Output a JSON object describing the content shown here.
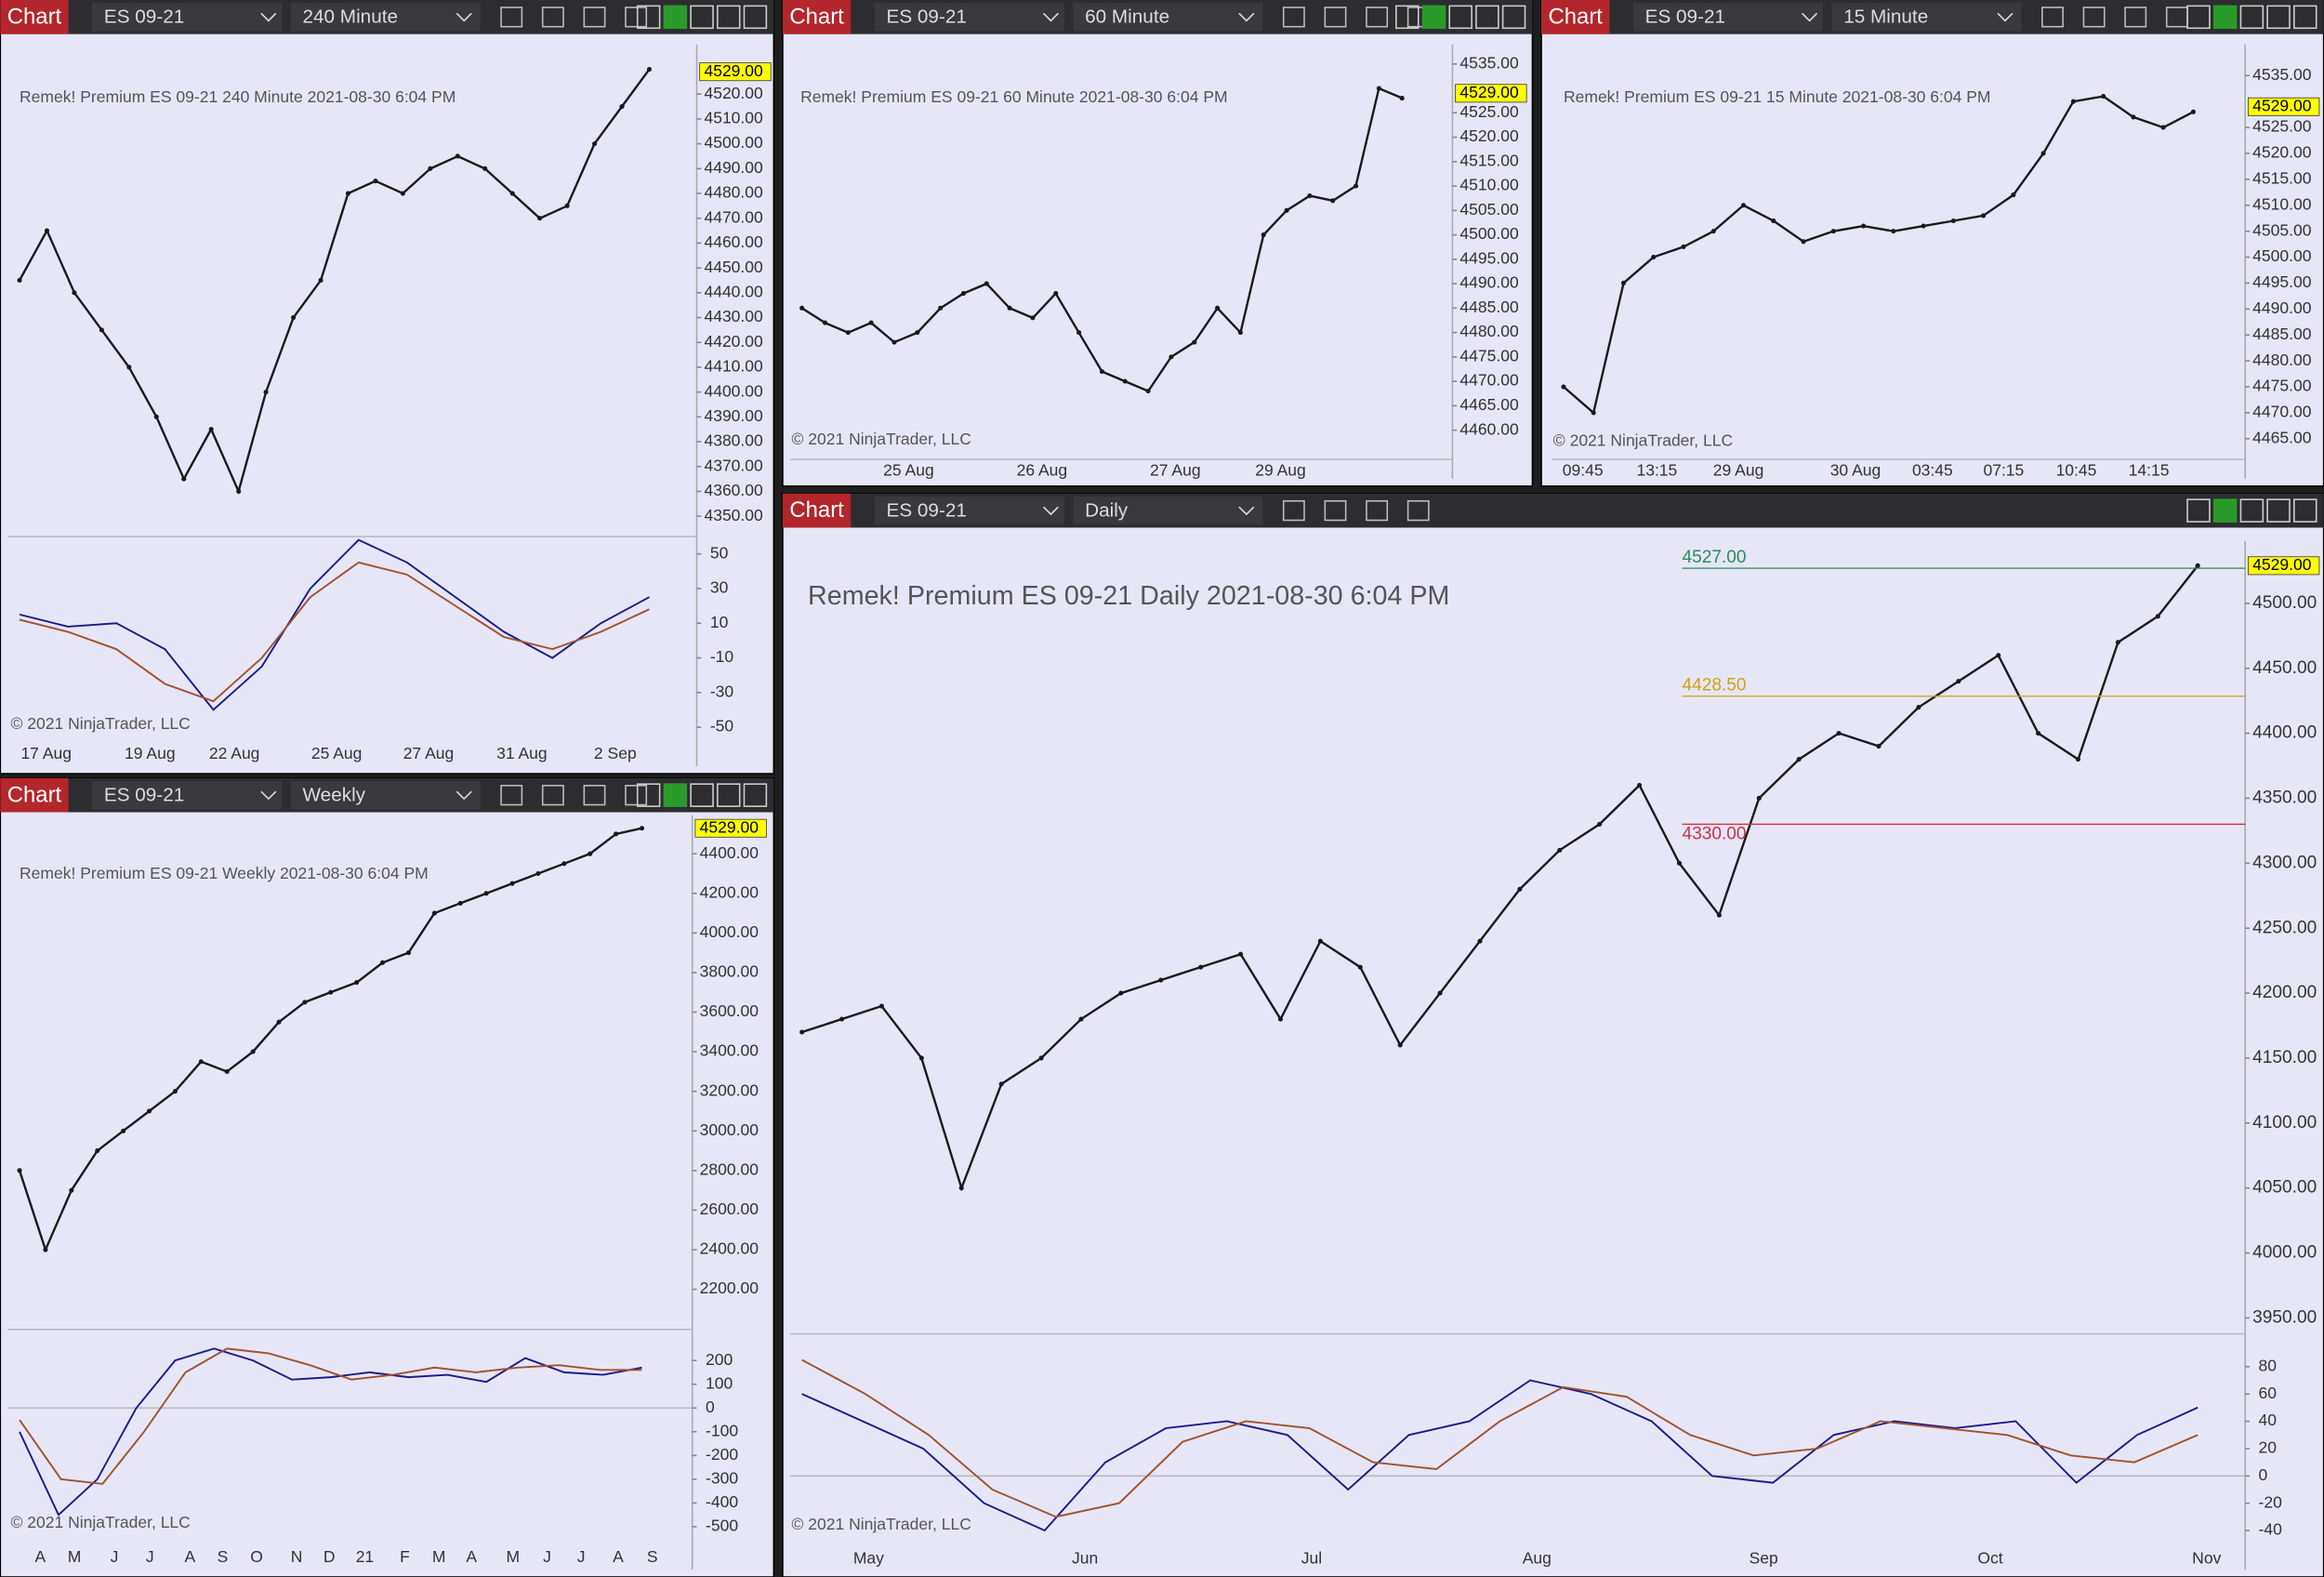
{
  "panels": [
    {
      "toolbar": {
        "button": "Chart",
        "symbol": "ES 09-21",
        "interval": "240 Minute"
      },
      "title": "Remek!  Premium  ES 09-21  240 Minute  2021-08-30 6:04 PM",
      "copyright": "© 2021 NinjaTrader, LLC",
      "price_label": {
        "value": 4529,
        "label": "4529.00"
      },
      "ylim": [
        4343,
        4540
      ],
      "yticks": [
        {
          "value": 4350,
          "label": "4350.00"
        },
        {
          "value": 4360,
          "label": "4360.00"
        },
        {
          "value": 4370,
          "label": "4370.00"
        },
        {
          "value": 4380,
          "label": "4380.00"
        },
        {
          "value": 4390,
          "label": "4390.00"
        },
        {
          "value": 4400,
          "label": "4400.00"
        },
        {
          "value": 4410,
          "label": "4410.00"
        },
        {
          "value": 4420,
          "label": "4420.00"
        },
        {
          "value": 4430,
          "label": "4430.00"
        },
        {
          "value": 4440,
          "label": "4440.00"
        },
        {
          "value": 4450,
          "label": "4450.00"
        },
        {
          "value": 4460,
          "label": "4460.00"
        },
        {
          "value": 4470,
          "label": "4470.00"
        },
        {
          "value": 4480,
          "label": "4480.00"
        },
        {
          "value": 4490,
          "label": "4490.00"
        },
        {
          "value": 4500,
          "label": "4500.00"
        },
        {
          "value": 4510,
          "label": "4510.00"
        },
        {
          "value": 4520,
          "label": "4520.00"
        }
      ],
      "xlabels": [
        "17 Aug",
        "19 Aug",
        "22 Aug",
        "25 Aug",
        "27 Aug",
        "31 Aug",
        "2 Sep"
      ],
      "price": {
        "color": "#1a1a1a",
        "values": [
          4445,
          4465,
          4440,
          4425,
          4410,
          4390,
          4365,
          4385,
          4360,
          4400,
          4430,
          4445,
          4480,
          4485,
          4480,
          4490,
          4495,
          4490,
          4480,
          4470,
          4475,
          4500,
          4515,
          4530
        ]
      },
      "oscillator": {
        "ylim": [
          -58,
          60
        ],
        "yticks": [
          50,
          30,
          10,
          -10,
          -30,
          -50
        ],
        "series": [
          {
            "color": "#1a1a8c",
            "values": [
              15,
              8,
              10,
              -5,
              -40,
              -15,
              30,
              58,
              45,
              25,
              5,
              -10,
              10,
              25
            ]
          },
          {
            "color": "#a0522d",
            "values": [
              12,
              5,
              -5,
              -25,
              -35,
              -10,
              25,
              45,
              38,
              20,
              2,
              -5,
              5,
              18
            ]
          }
        ]
      }
    },
    {
      "toolbar": {
        "button": "Chart",
        "symbol": "ES 09-21",
        "interval": "60 Minute"
      },
      "title": "Remek!  Premium  ES 09-21  60 Minute  2021-08-30 6:04 PM",
      "copyright": "© 2021 NinjaTrader, LLC",
      "price_label": {
        "value": 4529,
        "label": "4529.00"
      },
      "ylim": [
        4454,
        4539
      ],
      "yticks": [
        {
          "value": 4460,
          "label": "4460.00"
        },
        {
          "value": 4465,
          "label": "4465.00"
        },
        {
          "value": 4470,
          "label": "4470.00"
        },
        {
          "value": 4475,
          "label": "4475.00"
        },
        {
          "value": 4480,
          "label": "4480.00"
        },
        {
          "value": 4485,
          "label": "4485.00"
        },
        {
          "value": 4490,
          "label": "4490.00"
        },
        {
          "value": 4495,
          "label": "4495.00"
        },
        {
          "value": 4500,
          "label": "4500.00"
        },
        {
          "value": 4505,
          "label": "4505.00"
        },
        {
          "value": 4510,
          "label": "4510.00"
        },
        {
          "value": 4515,
          "label": "4515.00"
        },
        {
          "value": 4520,
          "label": "4520.00"
        },
        {
          "value": 4525,
          "label": "4525.00"
        },
        {
          "value": 4535,
          "label": "4535.00"
        }
      ],
      "xlabels": [
        "25 Aug",
        "26 Aug",
        "27 Aug",
        "29 Aug"
      ],
      "price": {
        "color": "#1a1a1a",
        "values": [
          4485,
          4482,
          4480,
          4482,
          4478,
          4480,
          4485,
          4488,
          4490,
          4485,
          4483,
          4488,
          4480,
          4472,
          4470,
          4468,
          4475,
          4478,
          4485,
          4480,
          4500,
          4505,
          4508,
          4507,
          4510,
          4530,
          4528
        ]
      }
    },
    {
      "toolbar": {
        "button": "Chart",
        "symbol": "ES 09-21",
        "interval": "15 Minute"
      },
      "title": "Remek!  Premium  ES 09-21  15 Minute  2021-08-30 6:04 PM",
      "copyright": "© 2021 NinjaTrader, LLC",
      "price_label": {
        "value": 4529,
        "label": "4529.00"
      },
      "ylim": [
        4461,
        4541
      ],
      "yticks": [
        {
          "value": 4465,
          "label": "4465.00"
        },
        {
          "value": 4470,
          "label": "4470.00"
        },
        {
          "value": 4475,
          "label": "4475.00"
        },
        {
          "value": 4480,
          "label": "4480.00"
        },
        {
          "value": 4485,
          "label": "4485.00"
        },
        {
          "value": 4490,
          "label": "4490.00"
        },
        {
          "value": 4495,
          "label": "4495.00"
        },
        {
          "value": 4500,
          "label": "4500.00"
        },
        {
          "value": 4505,
          "label": "4505.00"
        },
        {
          "value": 4510,
          "label": "4510.00"
        },
        {
          "value": 4515,
          "label": "4515.00"
        },
        {
          "value": 4520,
          "label": "4520.00"
        },
        {
          "value": 4525,
          "label": "4525.00"
        },
        {
          "value": 4535,
          "label": "4535.00"
        }
      ],
      "xlabels": [
        "09:45",
        "13:15",
        "29 Aug",
        "30 Aug",
        "03:45",
        "07:15",
        "10:45",
        "14:15"
      ],
      "price": {
        "color": "#1a1a1a",
        "values": [
          4475,
          4470,
          4495,
          4500,
          4502,
          4505,
          4510,
          4507,
          4503,
          4505,
          4506,
          4505,
          4506,
          4507,
          4508,
          4512,
          4520,
          4530,
          4531,
          4527,
          4525,
          4528
        ]
      }
    },
    {
      "toolbar": {
        "button": "Chart",
        "symbol": "ES 09-21",
        "interval": "Weekly"
      },
      "title": "Remek!  Premium  ES 09-21  Weekly  2021-08-30 6:04 PM",
      "copyright": "© 2021 NinjaTrader, LLC",
      "price_label": {
        "value": 4529,
        "label": "4529.00"
      },
      "ylim": [
        2012,
        4595
      ],
      "yticks": [
        {
          "value": 2200,
          "label": "2200.00"
        },
        {
          "value": 2400,
          "label": "2400.00"
        },
        {
          "value": 2600,
          "label": "2600.00"
        },
        {
          "value": 2800,
          "label": "2800.00"
        },
        {
          "value": 3000,
          "label": "3000.00"
        },
        {
          "value": 3200,
          "label": "3200.00"
        },
        {
          "value": 3400,
          "label": "3400.00"
        },
        {
          "value": 3600,
          "label": "3600.00"
        },
        {
          "value": 3800,
          "label": "3800.00"
        },
        {
          "value": 4000,
          "label": "4000.00"
        },
        {
          "value": 4200,
          "label": "4200.00"
        },
        {
          "value": 4400,
          "label": "4400.00"
        }
      ],
      "xlabels": [
        "A",
        "M",
        "J",
        "J",
        "A",
        "S",
        "O",
        "N",
        "D",
        "21",
        "F",
        "M",
        "A",
        "M",
        "J",
        "J",
        "A",
        "S"
      ],
      "price": {
        "color": "#1a1a1a",
        "values": [
          2800,
          2400,
          2700,
          2900,
          3000,
          3100,
          3200,
          3350,
          3300,
          3400,
          3550,
          3650,
          3700,
          3750,
          3850,
          3900,
          4100,
          4150,
          4200,
          4250,
          4300,
          4350,
          4400,
          4500,
          4529
        ]
      },
      "oscillator": {
        "ylim": [
          -562,
          312
        ],
        "yticks": [
          200,
          100,
          0,
          -100,
          -200,
          -300,
          -400,
          -500
        ],
        "series": [
          {
            "color": "#1a1a8c",
            "values": [
              -100,
              -450,
              -300,
              0,
              200,
              250,
              200,
              120,
              130,
              150,
              130,
              140,
              110,
              210,
              150,
              140,
              170
            ]
          },
          {
            "color": "#a0522d",
            "values": [
              -50,
              -300,
              -320,
              -100,
              150,
              250,
              230,
              180,
              120,
              140,
              170,
              150,
              170,
              180,
              160,
              160
            ]
          }
        ]
      }
    },
    {
      "toolbar": {
        "button": "Chart",
        "symbol": "ES 09-21",
        "interval": "Daily"
      },
      "title": "Remek!  Premium  ES 09-21  Daily  2021-08-30 6:04 PM",
      "copyright": "© 2021 NinjaTrader, LLC",
      "price_label": {
        "value": 4529,
        "label": "4529.00"
      },
      "ylim": [
        3940,
        4548
      ],
      "yticks": [
        {
          "value": 3950,
          "label": "3950.00"
        },
        {
          "value": 4000,
          "label": "4000.00"
        },
        {
          "value": 4050,
          "label": "4050.00"
        },
        {
          "value": 4100,
          "label": "4100.00"
        },
        {
          "value": 4150,
          "label": "4150.00"
        },
        {
          "value": 4200,
          "label": "4200.00"
        },
        {
          "value": 4250,
          "label": "4250.00"
        },
        {
          "value": 4300,
          "label": "4300.00"
        },
        {
          "value": 4350,
          "label": "4350.00"
        },
        {
          "value": 4400,
          "label": "4400.00"
        },
        {
          "value": 4450,
          "label": "4450.00"
        },
        {
          "value": 4500,
          "label": "4500.00"
        }
      ],
      "xlabels": [
        "May",
        "Jun",
        "Jul",
        "Aug",
        "Sep",
        "Oct",
        "Nov"
      ],
      "annotations": [
        {
          "value": 4527,
          "label": "4527.00",
          "color": "#2e8b57"
        },
        {
          "value": 4428.5,
          "label": "4428.50",
          "color": "#d4a017"
        },
        {
          "value": 4330,
          "label": "4330.00",
          "color": "#d03040"
        }
      ],
      "price": {
        "color": "#1a1a1a",
        "values": [
          4170,
          4180,
          4190,
          4150,
          4050,
          4130,
          4150,
          4180,
          4200,
          4210,
          4220,
          4230,
          4180,
          4240,
          4220,
          4160,
          4200,
          4240,
          4280,
          4310,
          4330,
          4360,
          4300,
          4260,
          4350,
          4380,
          4400,
          4390,
          4420,
          4440,
          4460,
          4400,
          4380,
          4470,
          4490,
          4529
        ]
      },
      "oscillator": {
        "ylim": [
          -48,
          104
        ],
        "yticks": [
          80,
          60,
          40,
          20,
          0,
          -20,
          -40
        ],
        "series": [
          {
            "color": "#1a1a8c",
            "values": [
              60,
              40,
              20,
              -20,
              -40,
              10,
              35,
              40,
              30,
              -10,
              30,
              40,
              70,
              60,
              40,
              0,
              -5,
              30,
              40,
              35,
              40,
              -5,
              30,
              50
            ]
          },
          {
            "color": "#a0522d",
            "values": [
              85,
              60,
              30,
              -10,
              -30,
              -20,
              25,
              40,
              35,
              10,
              5,
              40,
              65,
              58,
              30,
              15,
              20,
              40,
              35,
              30,
              15,
              10,
              30
            ]
          }
        ]
      }
    }
  ]
}
